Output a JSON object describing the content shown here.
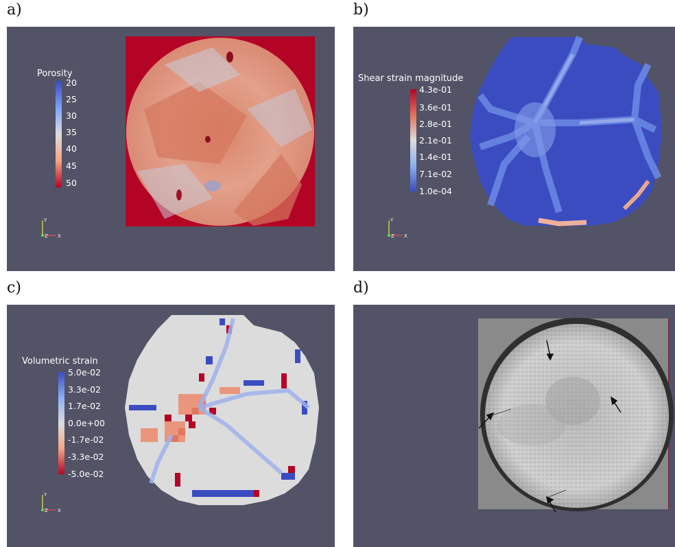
{
  "panels": [
    {
      "label": "a)",
      "colorbar_title": "Porosity",
      "ticks": [
        "20",
        "25",
        "30",
        "35",
        "40",
        "45",
        "50"
      ]
    },
    {
      "label": "b)",
      "colorbar_title": "Shear strain magnitude",
      "ticks": [
        "4.3e-01",
        "3.6e-01",
        "2.8e-01",
        "2.1e-01",
        "1.4e-01",
        "7.1e-02",
        "1.0e-04"
      ]
    },
    {
      "label": "c)",
      "colorbar_title": "Volumetric strain",
      "ticks": [
        "5.0e-02",
        "3.3e-02",
        "1.7e-02",
        "0.0e+00",
        "-1.7e-02",
        "-3.3e-02",
        "-5.0e-02"
      ]
    },
    {
      "label": "d)"
    }
  ],
  "axes": {
    "y": "Y",
    "z": "Z",
    "x": "X"
  },
  "colors": {
    "background": "#525366",
    "porosity_red": "#b40426",
    "strain_blue": "#3b4cc0",
    "neutral": "#dcdcdc"
  }
}
